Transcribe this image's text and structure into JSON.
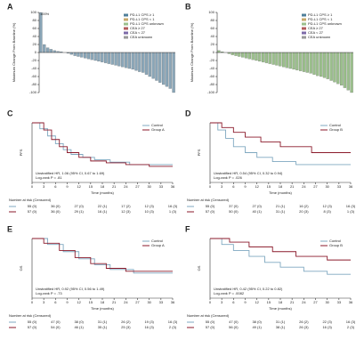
{
  "chart_data": [
    {
      "type": "bar",
      "panel": "A",
      "ylabel": "Maximum Change From Baseline (%)",
      "annotation": "100%",
      "ylim": [
        -100,
        100
      ],
      "yticks": [
        -100,
        -80,
        -60,
        -40,
        -20,
        0,
        20,
        40,
        60,
        80,
        100
      ],
      "color": "#8aa6b8",
      "values": [
        100,
        20,
        12,
        8,
        5,
        3,
        2,
        0,
        -2,
        -5,
        -8,
        -10,
        -12,
        -14,
        -16,
        -18,
        -20,
        -22,
        -24,
        -26,
        -28,
        -30,
        -32,
        -34,
        -36,
        -38,
        -40,
        -42,
        -45,
        -48,
        -50,
        -55,
        -60,
        -65,
        -70,
        -75,
        -80,
        -85,
        -90,
        -100
      ],
      "legend": [
        {
          "name": "PD-L1 CPS ≥ 1",
          "color": "#4f7f9a"
        },
        {
          "name": "PD-L1 CPS < 1",
          "color": "#c7a86a"
        },
        {
          "name": "PD-L1 CPS unknown",
          "color": "#9bbf8c"
        },
        {
          "name": "CEA ≥ 27",
          "color": "#b25b5b"
        },
        {
          "name": "CEA < 27",
          "color": "#7d6aa8"
        },
        {
          "name": "CEA unknown",
          "color": "#999999"
        }
      ]
    },
    {
      "type": "bar",
      "panel": "B",
      "ylabel": "Maximum Change From Baseline (%)",
      "ylim": [
        -100,
        100
      ],
      "yticks": [
        -100,
        -80,
        -60,
        -40,
        -20,
        0,
        20,
        40,
        60,
        80,
        100
      ],
      "color": "#9bbf8c",
      "values": [
        5,
        2,
        0,
        -3,
        -6,
        -8,
        -10,
        -12,
        -14,
        -16,
        -18,
        -20,
        -22,
        -24,
        -26,
        -28,
        -30,
        -32,
        -34,
        -36,
        -38,
        -40,
        -42,
        -44,
        -46,
        -48,
        -50,
        -52,
        -55,
        -58,
        -60,
        -63,
        -66,
        -70,
        -74,
        -78,
        -82,
        -88,
        -94,
        -100
      ],
      "legend": [
        {
          "name": "PD-L1 CPS ≥ 1",
          "color": "#4f7f9a"
        },
        {
          "name": "PD-L1 CPS < 1",
          "color": "#c7a86a"
        },
        {
          "name": "PD-L1 CPS unknown",
          "color": "#9bbf8c"
        },
        {
          "name": "CEA ≥ 27",
          "color": "#b25b5b"
        },
        {
          "name": "CEA < 27",
          "color": "#7d6aa8"
        },
        {
          "name": "CEA unknown",
          "color": "#999999"
        }
      ]
    },
    {
      "type": "line",
      "panel": "C",
      "ylabel": "PFS",
      "xlabel": "Time (months)",
      "xlim": [
        0,
        36
      ],
      "xticks": [
        0,
        3,
        6,
        9,
        12,
        15,
        18,
        21,
        24,
        27,
        30,
        33,
        36
      ],
      "ylim": [
        0,
        1
      ],
      "hr": "Unstratified HR, 1.06 (95% CI, 0.67 to 1.69)",
      "p": "Log-rank P = .81",
      "risk_title": "Number at risk (Censored)",
      "series": [
        {
          "name": "Control",
          "color": "#7fa8c0",
          "x": [
            0,
            2,
            2,
            4,
            4,
            6,
            6,
            8,
            8,
            10,
            10,
            13,
            13,
            16,
            16,
            20,
            20,
            25,
            25,
            36
          ],
          "values": [
            1,
            1,
            0.9,
            0.9,
            0.78,
            0.78,
            0.65,
            0.65,
            0.55,
            0.55,
            0.47,
            0.47,
            0.42,
            0.42,
            0.38,
            0.38,
            0.34,
            0.34,
            0.3,
            0.3
          ],
          "at_risk": [
            "55 (0)",
            "36 (0)",
            "27 (0)",
            "22 (1)",
            "17 (2)",
            "12 (3)",
            "16 (3)"
          ]
        },
        {
          "name": "Group A",
          "color": "#8b1a2b",
          "x": [
            0,
            3,
            3,
            5,
            5,
            7,
            7,
            9,
            9,
            12,
            12,
            15,
            15,
            19,
            19,
            24,
            24,
            30,
            30,
            36
          ],
          "values": [
            1,
            1,
            0.88,
            0.88,
            0.72,
            0.72,
            0.6,
            0.6,
            0.5,
            0.5,
            0.42,
            0.42,
            0.36,
            0.36,
            0.33,
            0.33,
            0.3,
            0.3,
            0.27,
            0.27
          ],
          "at_risk": [
            "57 (0)",
            "36 (0)",
            "29 (1)",
            "16 (1)",
            "12 (3)",
            "10 (3)",
            "1 (3)"
          ]
        }
      ]
    },
    {
      "type": "line",
      "panel": "D",
      "ylabel": "PFS",
      "xlabel": "Time (months)",
      "xlim": [
        0,
        36
      ],
      "xticks": [
        0,
        3,
        6,
        9,
        12,
        15,
        18,
        21,
        24,
        27,
        30,
        33,
        36
      ],
      "ylim": [
        0,
        1
      ],
      "hr": "Unstratified HR, 0.54 (95% CI, 0.32 to 0.94)",
      "p": "Log-rank P = .026",
      "risk_title": "Number at risk (Censored)",
      "series": [
        {
          "name": "Control",
          "color": "#7fa8c0",
          "x": [
            0,
            2,
            2,
            4,
            4,
            6,
            6,
            9,
            9,
            12,
            12,
            16,
            16,
            22,
            22,
            36
          ],
          "values": [
            1,
            1,
            0.88,
            0.88,
            0.74,
            0.74,
            0.6,
            0.6,
            0.5,
            0.5,
            0.42,
            0.42,
            0.35,
            0.35,
            0.3,
            0.3
          ],
          "at_risk": [
            "55 (0)",
            "37 (0)",
            "27 (0)",
            "21 (1)",
            "16 (2)",
            "12 (3)",
            "16 (3)"
          ]
        },
        {
          "name": "Group B",
          "color": "#8b1a2b",
          "x": [
            0,
            3,
            3,
            6,
            6,
            9,
            9,
            13,
            13,
            18,
            18,
            26,
            26,
            36
          ],
          "values": [
            1,
            1,
            0.92,
            0.92,
            0.84,
            0.84,
            0.76,
            0.76,
            0.68,
            0.68,
            0.6,
            0.6,
            0.5,
            0.5
          ],
          "at_risk": [
            "57 (0)",
            "50 (0)",
            "40 (1)",
            "31 (1)",
            "20 (3)",
            "8 (3)",
            "1 (3)"
          ]
        }
      ]
    },
    {
      "type": "line",
      "panel": "E",
      "ylabel": "OS",
      "xlabel": "Time (months)",
      "xlim": [
        0,
        36
      ],
      "xticks": [
        0,
        3,
        6,
        9,
        12,
        15,
        18,
        21,
        24,
        27,
        30,
        33,
        36
      ],
      "ylim": [
        0,
        1
      ],
      "hr": "Unstratified HR, 0.92 (95% CI, 0.56 to 1.49)",
      "p": "Log-rank P = .73",
      "risk_title": "Number at risk (Censored)",
      "series": [
        {
          "name": "Control",
          "color": "#7fa8c0",
          "x": [
            0,
            4,
            4,
            8,
            8,
            12,
            12,
            16,
            16,
            20,
            20,
            26,
            26,
            36
          ],
          "values": [
            1,
            1,
            0.9,
            0.9,
            0.78,
            0.78,
            0.66,
            0.66,
            0.56,
            0.56,
            0.48,
            0.48,
            0.42,
            0.42
          ],
          "at_risk": [
            "55 (0)",
            "47 (0)",
            "38 (0)",
            "31 (1)",
            "26 (2)",
            "19 (3)",
            "16 (3)"
          ]
        },
        {
          "name": "Group A",
          "color": "#8b1a2b",
          "x": [
            0,
            3,
            3,
            7,
            7,
            11,
            11,
            15,
            15,
            19,
            19,
            24,
            24,
            36
          ],
          "values": [
            1,
            1,
            0.92,
            0.92,
            0.8,
            0.8,
            0.68,
            0.68,
            0.58,
            0.58,
            0.5,
            0.5,
            0.45,
            0.45
          ],
          "at_risk": [
            "57 (0)",
            "54 (0)",
            "46 (1)",
            "35 (1)",
            "25 (3)",
            "16 (3)",
            "2 (3)"
          ]
        }
      ]
    },
    {
      "type": "line",
      "panel": "F",
      "ylabel": "OS",
      "xlabel": "Time (months)",
      "xlim": [
        0,
        36
      ],
      "xticks": [
        0,
        3,
        6,
        9,
        12,
        15,
        18,
        21,
        24,
        27,
        30,
        33,
        36
      ],
      "ylim": [
        0,
        1
      ],
      "hr": "Unstratified HR, 0.42 (95% CI, 0.22 to 0.82)",
      "p": "Log-rank P = .0082",
      "risk_title": "Number at risk (Censored)",
      "series": [
        {
          "name": "Control",
          "color": "#7fa8c0",
          "x": [
            0,
            3,
            3,
            6,
            6,
            10,
            10,
            14,
            14,
            18,
            18,
            24,
            24,
            30,
            30,
            36
          ],
          "values": [
            1,
            1,
            0.9,
            0.9,
            0.8,
            0.8,
            0.7,
            0.7,
            0.6,
            0.6,
            0.52,
            0.52,
            0.45,
            0.45,
            0.4,
            0.4
          ],
          "at_risk": [
            "55 (0)",
            "47 (0)",
            "38 (0)",
            "31 (1)",
            "26 (2)",
            "22 (3)",
            "16 (3)"
          ]
        },
        {
          "name": "Group B",
          "color": "#8b1a2b",
          "x": [
            0,
            5,
            5,
            10,
            10,
            16,
            16,
            22,
            22,
            30,
            30,
            36
          ],
          "values": [
            1,
            1,
            0.94,
            0.94,
            0.86,
            0.86,
            0.78,
            0.78,
            0.7,
            0.7,
            0.64,
            0.64
          ],
          "at_risk": [
            "57 (0)",
            "56 (0)",
            "49 (1)",
            "38 (1)",
            "26 (3)",
            "16 (3)",
            "2 (3)"
          ]
        }
      ]
    }
  ]
}
